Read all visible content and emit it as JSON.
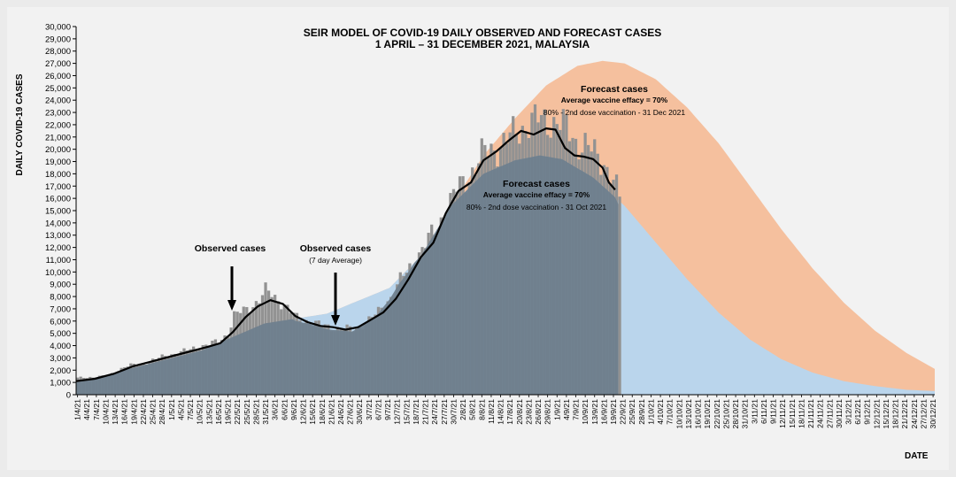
{
  "chart_data": {
    "type": "bar",
    "title": [
      "SEIR MODEL OF COVID-19 DAILY OBSERVED AND FORECAST CASES",
      "1 APRIL – 31 DECEMBER 2021, MALAYSIA"
    ],
    "xlabel": "DATE",
    "ylabel": "DAILY COVID-19 CASES",
    "ylim": [
      0,
      30000
    ],
    "y_ticks": [
      0,
      1000,
      2000,
      3000,
      4000,
      5000,
      6000,
      7000,
      8000,
      9000,
      10000,
      11000,
      12000,
      13000,
      14000,
      15000,
      16000,
      17000,
      18000,
      19000,
      20000,
      21000,
      22000,
      23000,
      24000,
      25000,
      26000,
      27000,
      28000,
      29000,
      30000
    ],
    "y_tick_labels": [
      "0",
      "1,000",
      "2,000",
      "3,000",
      "4,000",
      "5,000",
      "6,000",
      "7,000",
      "8,000",
      "9,000",
      "10,000",
      "11,000",
      "12,000",
      "13,000",
      "14,000",
      "15,000",
      "16,000",
      "17,000",
      "18,000",
      "19,000",
      "20,000",
      "21,000",
      "22,000",
      "23,000",
      "24,000",
      "25,000",
      "26,000",
      "27,000",
      "28,000",
      "29,000",
      "30,000"
    ],
    "x_tick_labels": [
      "1/4/21",
      "4/4/21",
      "7/4/21",
      "10/4/21",
      "13/4/21",
      "16/4/21",
      "19/4/21",
      "22/4/21",
      "25/4/21",
      "28/4/21",
      "1/5/21",
      "4/5/21",
      "7/5/21",
      "10/5/21",
      "13/5/21",
      "16/5/21",
      "19/5/21",
      "22/5/21",
      "25/5/21",
      "28/5/21",
      "31/5/21",
      "3/6/21",
      "6/6/21",
      "9/6/21",
      "12/6/21",
      "15/6/21",
      "18/6/21",
      "21/6/21",
      "24/6/21",
      "27/6/21",
      "30/6/21",
      "3/7/21",
      "6/7/21",
      "9/7/21",
      "12/7/21",
      "15/7/21",
      "18/7/21",
      "21/7/21",
      "24/7/21",
      "27/7/21",
      "30/7/21",
      "2/8/21",
      "5/8/21",
      "8/8/21",
      "11/8/21",
      "14/8/21",
      "17/8/21",
      "20/8/21",
      "23/8/21",
      "26/8/21",
      "29/8/21",
      "1/9/21",
      "4/9/21",
      "7/9/21",
      "10/9/21",
      "13/9/21",
      "16/9/21",
      "19/9/21",
      "22/9/21",
      "25/9/21",
      "28/9/21",
      "1/10/21",
      "4/10/21",
      "7/10/21",
      "10/10/21",
      "13/10/21",
      "16/10/21",
      "19/10/21",
      "22/10/21",
      "25/10/21",
      "28/10/21",
      "31/10/21",
      "3/11/21",
      "6/11/21",
      "9/11/21",
      "12/11/21",
      "15/11/21",
      "18/11/21",
      "21/11/21",
      "24/11/21",
      "27/11/21",
      "30/11/21",
      "3/12/21",
      "6/12/21",
      "9/12/21",
      "12/12/21",
      "15/12/21",
      "18/12/21",
      "21/12/21",
      "24/12/21",
      "27/12/21",
      "30/12/21"
    ],
    "x_range_days": [
      0,
      274
    ],
    "observed_end_day": 173,
    "series": [
      {
        "name": "Observed cases",
        "type": "bar",
        "color": "#929292",
        "keypoints": [
          [
            0,
            1350
          ],
          [
            5,
            1450
          ],
          [
            10,
            1550
          ],
          [
            15,
            2300
          ],
          [
            20,
            2500
          ],
          [
            25,
            2900
          ],
          [
            30,
            3300
          ],
          [
            35,
            3600
          ],
          [
            40,
            4000
          ],
          [
            45,
            4300
          ],
          [
            48,
            5000
          ],
          [
            50,
            6500
          ],
          [
            53,
            6800
          ],
          [
            55,
            7100
          ],
          [
            58,
            7800
          ],
          [
            60,
            8500
          ],
          [
            63,
            7900
          ],
          [
            66,
            7400
          ],
          [
            70,
            6200
          ],
          [
            75,
            5900
          ],
          [
            80,
            5500
          ],
          [
            84,
            5400
          ],
          [
            88,
            5300
          ],
          [
            92,
            5900
          ],
          [
            96,
            6700
          ],
          [
            100,
            8000
          ],
          [
            103,
            9300
          ],
          [
            106,
            10300
          ],
          [
            109,
            11500
          ],
          [
            112,
            12600
          ],
          [
            115,
            13800
          ],
          [
            118,
            15200
          ],
          [
            121,
            16700
          ],
          [
            124,
            17600
          ],
          [
            127,
            18600
          ],
          [
            130,
            19800
          ],
          [
            134,
            20200
          ],
          [
            137,
            20700
          ],
          [
            140,
            21400
          ],
          [
            144,
            22200
          ],
          [
            148,
            22400
          ],
          [
            151,
            22300
          ],
          [
            153,
            22200
          ],
          [
            156,
            21700
          ],
          [
            159,
            20700
          ],
          [
            162,
            20300
          ],
          [
            165,
            19600
          ],
          [
            168,
            19000
          ],
          [
            170,
            18000
          ],
          [
            173,
            16000
          ]
        ]
      },
      {
        "name": "Observed cases (7 day Average)",
        "type": "line",
        "color": "#000000",
        "keypoints": [
          [
            0,
            1100
          ],
          [
            6,
            1300
          ],
          [
            12,
            1700
          ],
          [
            18,
            2300
          ],
          [
            24,
            2700
          ],
          [
            30,
            3100
          ],
          [
            36,
            3500
          ],
          [
            42,
            3900
          ],
          [
            46,
            4200
          ],
          [
            50,
            5100
          ],
          [
            54,
            6300
          ],
          [
            58,
            7200
          ],
          [
            62,
            7700
          ],
          [
            66,
            7400
          ],
          [
            70,
            6400
          ],
          [
            74,
            5900
          ],
          [
            78,
            5600
          ],
          [
            82,
            5500
          ],
          [
            86,
            5300
          ],
          [
            90,
            5500
          ],
          [
            94,
            6100
          ],
          [
            98,
            6700
          ],
          [
            102,
            7800
          ],
          [
            106,
            9400
          ],
          [
            110,
            11200
          ],
          [
            114,
            12400
          ],
          [
            118,
            14800
          ],
          [
            122,
            16600
          ],
          [
            126,
            17300
          ],
          [
            130,
            19100
          ],
          [
            134,
            19800
          ],
          [
            138,
            20700
          ],
          [
            142,
            21500
          ],
          [
            146,
            21200
          ],
          [
            150,
            21700
          ],
          [
            153,
            21600
          ],
          [
            156,
            20100
          ],
          [
            159,
            19500
          ],
          [
            162,
            19400
          ],
          [
            165,
            19200
          ],
          [
            168,
            18500
          ],
          [
            170,
            17300
          ],
          [
            172,
            16700
          ]
        ]
      },
      {
        "name": "Forecast cases",
        "type": "area",
        "color": "#f5c09e",
        "annotation": [
          "Average vaccine  effacy = 70%",
          "80% - 2nd dose vaccination - 31 Dec 2021"
        ],
        "keypoints": [
          [
            0,
            1000
          ],
          [
            20,
            2300
          ],
          [
            40,
            3600
          ],
          [
            60,
            5800
          ],
          [
            80,
            6600
          ],
          [
            100,
            8700
          ],
          [
            110,
            11300
          ],
          [
            120,
            15500
          ],
          [
            130,
            19500
          ],
          [
            140,
            22500
          ],
          [
            150,
            25200
          ],
          [
            160,
            26800
          ],
          [
            168,
            27200
          ],
          [
            175,
            27000
          ],
          [
            185,
            25700
          ],
          [
            195,
            23400
          ],
          [
            205,
            20500
          ],
          [
            215,
            17000
          ],
          [
            225,
            13500
          ],
          [
            235,
            10300
          ],
          [
            245,
            7500
          ],
          [
            255,
            5200
          ],
          [
            265,
            3400
          ],
          [
            274,
            2100
          ]
        ]
      },
      {
        "name": "Forecast cases",
        "type": "area",
        "color": "#bad5ec",
        "annotation": [
          "Average vaccine  effacy = 70%",
          "80% - 2nd dose vaccination - 31 Oct 2021"
        ],
        "keypoints": [
          [
            0,
            1000
          ],
          [
            20,
            2300
          ],
          [
            40,
            3600
          ],
          [
            60,
            5800
          ],
          [
            80,
            6600
          ],
          [
            100,
            8700
          ],
          [
            110,
            11300
          ],
          [
            120,
            15500
          ],
          [
            130,
            18000
          ],
          [
            140,
            19100
          ],
          [
            148,
            19500
          ],
          [
            155,
            19200
          ],
          [
            165,
            17700
          ],
          [
            175,
            15400
          ],
          [
            185,
            12400
          ],
          [
            195,
            9400
          ],
          [
            205,
            6700
          ],
          [
            215,
            4500
          ],
          [
            225,
            2900
          ],
          [
            235,
            1800
          ],
          [
            245,
            1100
          ],
          [
            255,
            700
          ],
          [
            265,
            400
          ],
          [
            274,
            300
          ]
        ]
      }
    ],
    "annotations": {
      "observed": "Observed cases",
      "observed_avg": "Observed cases",
      "observed_avg_sub": "(7 day Average)",
      "forecast_upper_title": "Forecast cases",
      "forecast_lower_title": "Forecast cases"
    },
    "grid": false,
    "legend": "none"
  }
}
